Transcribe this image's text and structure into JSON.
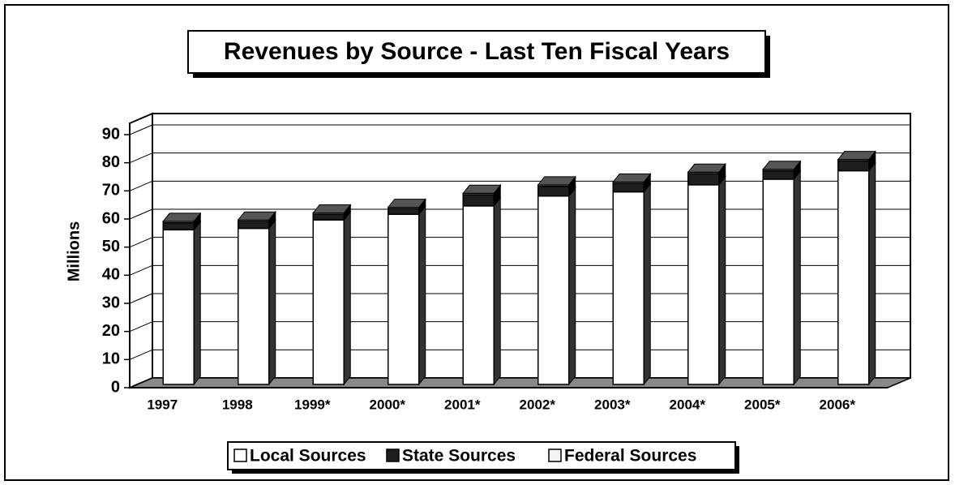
{
  "chart_data": {
    "type": "bar3d_stacked",
    "title": "Revenues by Source - Last Ten Fiscal Years",
    "y_label": "Millions",
    "categories": [
      "1997",
      "1998",
      "1999*",
      "2000*",
      "2001*",
      "2002*",
      "2003*",
      "2004*",
      "2005*",
      "2006*"
    ],
    "series": [
      {
        "name": "Local Sources",
        "color": "#ffffff",
        "values": [
          55,
          55.5,
          58.5,
          60.5,
          63.5,
          67,
          68.5,
          71,
          73,
          76
        ]
      },
      {
        "name": "State Sources",
        "color": "#1e1e1e",
        "values": [
          2.5,
          2.5,
          2,
          2,
          4,
          3.5,
          3,
          4,
          3,
          3.5
        ]
      },
      {
        "name": "Federal Sources",
        "color": "#f2f2f2",
        "values": [
          0.5,
          0.5,
          0.5,
          0.5,
          0.5,
          0.5,
          0.5,
          0.5,
          0.5,
          0.5
        ]
      }
    ],
    "ylim": [
      0,
      90
    ],
    "yticks": [
      0,
      10,
      20,
      30,
      40,
      50,
      60,
      70,
      80,
      90
    ],
    "grid": true,
    "legend": "bottom"
  }
}
